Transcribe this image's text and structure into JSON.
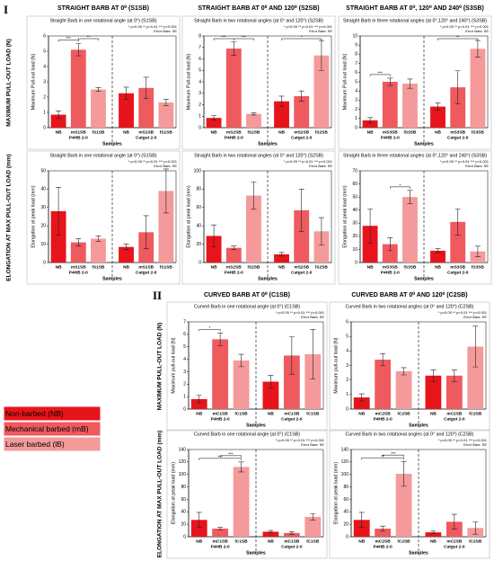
{
  "sections": [
    {
      "label": "I",
      "headers": [
        "STRAIGHT BARB AT 0⁰ (S1SB)",
        "STRAIGHT BARB AT 0⁰ AND 120⁰ (S2SB)",
        "STRAIGHT BARB AT 0⁰, 120⁰ AND 240⁰ (S3SB)"
      ],
      "row_labels": [
        "MAXIMUM PULL-OUT LOAD (N)",
        "ELONGATION AT MAX PULL-OUT LOAD (mm)"
      ]
    },
    {
      "label": "II",
      "headers": [
        "CURVED BARB AT 0⁰ (C1SB)",
        "CURVED BARB AT 0⁰ AND 120⁰ (C2SB)"
      ],
      "row_labels": [
        "MAXIMUM PULL-OUT LOAD (N)",
        "ELONGATION AT MAX PULL-OUT LOAD (mm)"
      ]
    }
  ],
  "legend": [
    {
      "name": "Non-barbed (NB)",
      "color": "#e8141b"
    },
    {
      "name": "Mechanical barbed (mB)",
      "color": "#ef5a5f"
    },
    {
      "name": "Laser barbed (lB)",
      "color": "#f59a9a"
    }
  ],
  "chart_data": [
    {
      "type": "bar",
      "title": "Straight Barb in one rotational angle (at 0°) (S1SB)",
      "note": "* p<0.05   ** p<0.01   *** p<0.001",
      "error_note": "Error Bars: SE",
      "ylabel": "Maximum Pull-out load (N)",
      "xlabel": "Samples",
      "groups": [
        "P4HB 2-0",
        "Catgut 2-0"
      ],
      "categories": [
        "NB",
        "mS1SB",
        "lS1SB",
        "NB",
        "mS1SB",
        "lS1SB"
      ],
      "colors": [
        "#e8141b",
        "#ef5a5f",
        "#f59a9a",
        "#e8141b",
        "#ef5a5f",
        "#f59a9a"
      ],
      "values": [
        0.85,
        5.1,
        2.5,
        2.25,
        2.6,
        1.65
      ],
      "errors": [
        0.25,
        0.4,
        0.12,
        0.4,
        0.7,
        0.2
      ],
      "ylim": [
        0,
        6
      ],
      "yticks": [
        0,
        1,
        2,
        3,
        4,
        5,
        6
      ],
      "brackets": [
        {
          "from": 0,
          "to": 1,
          "label": "***"
        },
        {
          "from": 1,
          "to": 2,
          "label": "**"
        }
      ]
    },
    {
      "type": "bar",
      "title": "Straight Barb in two rotational angles (at 0° and 120°) (S2SB)",
      "note": "* p<0.05   ** p<0.01   *** p<0.001",
      "error_note": "Error Bars: SE",
      "ylabel": "Maximum Pull-out load (N)",
      "xlabel": "Samples",
      "groups": [
        "P4HB 2-0",
        "Catgut 2-0"
      ],
      "categories": [
        "NB",
        "mS2SB",
        "lS2SB",
        "NB",
        "mS2SB",
        "lS2SB"
      ],
      "colors": [
        "#e8141b",
        "#ef5a5f",
        "#f59a9a",
        "#e8141b",
        "#ef5a5f",
        "#f59a9a"
      ],
      "values": [
        0.85,
        6.9,
        1.2,
        2.3,
        2.75,
        6.3
      ],
      "errors": [
        0.2,
        0.6,
        0.1,
        0.45,
        0.45,
        1.3
      ],
      "ylim": [
        0,
        8
      ],
      "yticks": [
        0,
        1,
        2,
        3,
        4,
        5,
        6,
        7,
        8
      ],
      "brackets": [
        {
          "from": 0,
          "to": 1,
          "label": "***"
        },
        {
          "from": 1,
          "to": 2,
          "label": "***"
        },
        {
          "from": 3,
          "to": 5,
          "label": "*"
        }
      ]
    },
    {
      "type": "bar",
      "title": "Straight Barb in three rotational angles (at 0°,120° and 240°) (S3SB)",
      "note": "* p<0.05   ** p<0.01   *** p<0.001",
      "error_note": "Error Bars: SE",
      "ylabel": "Maximum Pull-out load (N)",
      "xlabel": "Samples",
      "groups": [
        "P4HB 2-0",
        "Catgut 2-0"
      ],
      "categories": [
        "NB",
        "mS3SB",
        "lS3SB",
        "NB",
        "mS3SB",
        "lS3SB"
      ],
      "colors": [
        "#e8141b",
        "#ef5a5f",
        "#f59a9a",
        "#e8141b",
        "#ef5a5f",
        "#f59a9a"
      ],
      "values": [
        0.8,
        5.0,
        4.8,
        2.3,
        4.4,
        8.6
      ],
      "errors": [
        0.3,
        0.4,
        0.5,
        0.4,
        1.8,
        0.9
      ],
      "ylim": [
        0,
        10
      ],
      "yticks": [
        0,
        1,
        2,
        3,
        4,
        5,
        6,
        7,
        8,
        9,
        10
      ],
      "brackets": [
        {
          "from": 0,
          "to": 1,
          "label": "***"
        },
        {
          "from": 3,
          "to": 5,
          "label": "**"
        }
      ]
    },
    {
      "type": "bar",
      "title": "Straight Barb in one rotational angle (at 0°) (S1SB)",
      "note": "* p<0.05   ** p<0.01   *** p<0.001",
      "error_note": "Error Bars: SE",
      "ylabel": "Elongation at peak load (mm)",
      "xlabel": "Samples",
      "groups": [
        "P4HB 2-0",
        "Catgut 2-0"
      ],
      "categories": [
        "NB",
        "mS1SB",
        "lS1SB",
        "NB",
        "mS1SB",
        "lS1SB"
      ],
      "colors": [
        "#e8141b",
        "#ef5a5f",
        "#f59a9a",
        "#e8141b",
        "#ef5a5f",
        "#f59a9a"
      ],
      "values": [
        28,
        11,
        13,
        8.5,
        16.5,
        39
      ],
      "errors": [
        13,
        2,
        1.5,
        1.5,
        9,
        12
      ],
      "ylim": [
        0,
        50
      ],
      "yticks": [
        0,
        10,
        20,
        30,
        40,
        50
      ],
      "brackets": []
    },
    {
      "type": "bar",
      "title": "Straight Barb in two rotational angles (at 0° and 120°) (S2SB)",
      "note": "* p<0.05   ** p<0.01   *** p<0.001",
      "error_note": "Error Bars: SE",
      "ylabel": "Elongation at peak load (mm)",
      "xlabel": "Samples",
      "groups": [
        "P4HB 2-0",
        "Catgut 2-0"
      ],
      "categories": [
        "NB",
        "mS2SB",
        "lS2SB",
        "NB",
        "mS2SB",
        "lS2SB"
      ],
      "colors": [
        "#e8141b",
        "#ef5a5f",
        "#f59a9a",
        "#e8141b",
        "#ef5a5f",
        "#f59a9a"
      ],
      "values": [
        29,
        16,
        73,
        9,
        57,
        34
      ],
      "errors": [
        12,
        2,
        15,
        2,
        23,
        15
      ],
      "ylim": [
        0,
        100
      ],
      "yticks": [
        0,
        20,
        40,
        60,
        80,
        100
      ],
      "brackets": []
    },
    {
      "type": "bar",
      "title": "Straight Barb in three rotational angles (at 0°,120° and 240°) (S3SB)",
      "note": "* p<0.05   ** p<0.01   *** p<0.001",
      "error_note": "Error Bars: SE",
      "ylabel": "Elongation at peak load (mm)",
      "xlabel": "Samples",
      "groups": [
        "P4HB 2-0",
        "Catgut 2-0"
      ],
      "categories": [
        "NB",
        "mS3SB",
        "lS3SB",
        "NB",
        "mS3SB",
        "lS3SB"
      ],
      "colors": [
        "#e8141b",
        "#ef5a5f",
        "#f59a9a",
        "#e8141b",
        "#ef5a5f",
        "#f59a9a"
      ],
      "values": [
        28,
        14,
        50,
        9,
        31,
        8.5
      ],
      "errors": [
        13,
        5,
        5,
        1.5,
        10,
        4
      ],
      "ylim": [
        0,
        70
      ],
      "yticks": [
        0,
        10,
        20,
        30,
        40,
        50,
        60,
        70
      ],
      "brackets": [
        {
          "from": 1,
          "to": 2,
          "label": "*"
        }
      ]
    },
    {
      "type": "bar",
      "title": "Curved Barb in one rotational angle (at 0°) (C1SB)",
      "note": "* p<0.05   ** p<0.01   *** p<0.001",
      "error_note": "Error Bars: SE",
      "ylabel": "Maximum pull-out load (N)",
      "xlabel": "Samples",
      "groups": [
        "P4HB 2-0",
        "Catgut 2-0"
      ],
      "categories": [
        "NB",
        "mC1SB",
        "lC1SB",
        "NB",
        "mC1SB",
        "lC1SB"
      ],
      "colors": [
        "#e8141b",
        "#ef5a5f",
        "#f59a9a",
        "#e8141b",
        "#ef5a5f",
        "#f59a9a"
      ],
      "values": [
        0.8,
        5.6,
        3.9,
        2.2,
        4.3,
        4.4
      ],
      "errors": [
        0.3,
        0.5,
        0.5,
        0.5,
        1.5,
        2.0
      ],
      "ylim": [
        0,
        7
      ],
      "yticks": [
        0,
        1,
        2,
        3,
        4,
        5,
        6,
        7
      ],
      "brackets": [
        {
          "from": 0,
          "to": 1,
          "label": "*"
        }
      ]
    },
    {
      "type": "bar",
      "title": "Curved Barb in two rotational angles (at 0° and 120°) (C2SB)",
      "note": "* p<0.05   ** p<0.01   *** p<0.001",
      "error_note": "Error Bars: SE",
      "ylabel": "Maximum pull-out load (N)",
      "xlabel": "Samples",
      "groups": [
        "P4HB 2-0",
        "Catgut 2-0"
      ],
      "categories": [
        "NB",
        "mC2SB",
        "lC2SB",
        "NB",
        "mC2SB",
        "lC2SB"
      ],
      "colors": [
        "#e8141b",
        "#ef5a5f",
        "#f59a9a",
        "#e8141b",
        "#ef5a5f",
        "#f59a9a"
      ],
      "values": [
        0.8,
        3.4,
        2.6,
        2.3,
        2.3,
        4.3
      ],
      "errors": [
        0.25,
        0.4,
        0.25,
        0.4,
        0.4,
        1.4
      ],
      "ylim": [
        0,
        6
      ],
      "yticks": [
        0,
        1,
        2,
        3,
        4,
        5,
        6
      ],
      "brackets": []
    },
    {
      "type": "bar",
      "title": "Curved Barb in one rotational angle (at 0°) (C1SB)",
      "note": "* p<0.05   ** p<0.01   *** p<0.001",
      "error_note": "Error Bars: SE",
      "ylabel": "Elongation at peak load (mm)",
      "xlabel": "Samples",
      "groups": [
        "P4HB 2-0",
        "Catgut 2-0"
      ],
      "categories": [
        "NB",
        "mC1SB",
        "lC1SB",
        "NB",
        "mC1SB",
        "lC1SB"
      ],
      "colors": [
        "#e8141b",
        "#ef5a5f",
        "#f59a9a",
        "#e8141b",
        "#ef5a5f",
        "#f59a9a"
      ],
      "values": [
        27,
        13,
        112,
        8,
        6,
        32
      ],
      "errors": [
        12,
        2,
        8,
        2,
        2,
        5
      ],
      "ylim": [
        0,
        140
      ],
      "yticks": [
        0,
        20,
        40,
        60,
        80,
        100,
        120,
        140
      ],
      "brackets": [
        {
          "from": 0,
          "to": 2,
          "label": "***"
        },
        {
          "from": 1,
          "to": 2,
          "label": "***"
        }
      ]
    },
    {
      "type": "bar",
      "title": "Curved Barb in two rotational angles (at 0° and 120°) (C2SB)",
      "note": "* p<0.05   ** p<0.01   *** p<0.001",
      "error_note": "Error Bars: SE",
      "ylabel": "Elongation at peak load (mm)",
      "xlabel": "Samples",
      "groups": [
        "P4HB 2-0",
        "Catgut 2-0"
      ],
      "categories": [
        "NB",
        "mC2SB",
        "lC2SB",
        "NB",
        "mC2SB",
        "lC2SB"
      ],
      "colors": [
        "#e8141b",
        "#ef5a5f",
        "#f59a9a",
        "#e8141b",
        "#ef5a5f",
        "#f59a9a"
      ],
      "values": [
        27,
        13,
        101,
        7,
        24,
        14
      ],
      "errors": [
        12,
        4,
        20,
        2,
        12,
        10
      ],
      "ylim": [
        0,
        140
      ],
      "yticks": [
        0,
        20,
        40,
        60,
        80,
        100,
        120,
        140
      ],
      "brackets": [
        {
          "from": 0,
          "to": 2,
          "label": "**"
        },
        {
          "from": 1,
          "to": 2,
          "label": "***"
        }
      ]
    }
  ]
}
